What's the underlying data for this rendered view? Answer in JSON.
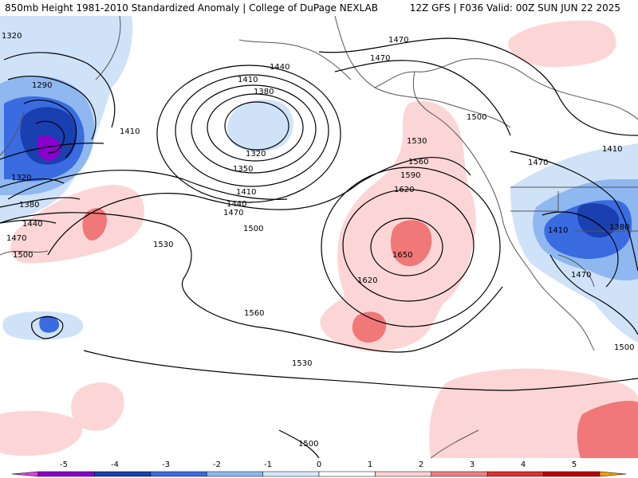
{
  "header": {
    "title": "850mb Height 1981-2010 Standardized Anomaly | College of DuPage NEXLAB",
    "run_info": "12Z GFS | F036 Valid: 00Z SUN JUN 22 2025"
  },
  "contour_labels": [
    "1320",
    "1290",
    "1410",
    "1320",
    "1380",
    "1440",
    "1470",
    "1500",
    "1440",
    "1410",
    "1380",
    "1320",
    "1350",
    "1410",
    "1440",
    "1470",
    "1500",
    "1470",
    "1470",
    "1500",
    "1530",
    "1560",
    "1590",
    "1620",
    "1650",
    "1620",
    "1530",
    "1560",
    "1530",
    "1500",
    "1470",
    "1410",
    "1410",
    "1380",
    "1470",
    "1500"
  ],
  "legend": {
    "ticks": [
      "-5",
      "-4",
      "-3",
      "-2",
      "-1",
      "0",
      "1",
      "2",
      "3",
      "4",
      "5"
    ],
    "colors": [
      "#e040e0",
      "#8800cc",
      "#1a3fb0",
      "#3a6be0",
      "#8fb7f0",
      "#d6e8fb",
      "#ffffff",
      "#fcd0d0",
      "#f28080",
      "#e03030",
      "#c00000",
      "#f5a000"
    ]
  },
  "colors": {
    "coast": "#555555",
    "contour": "#000000",
    "neg1": "#cfe2f8",
    "neg2": "#8fb7f0",
    "neg3": "#3a6be0",
    "neg4": "#1a3fb0",
    "neg5": "#8800cc",
    "pos1": "#fcd6d6",
    "pos2": "#f07878",
    "pos3": "#e03838"
  }
}
